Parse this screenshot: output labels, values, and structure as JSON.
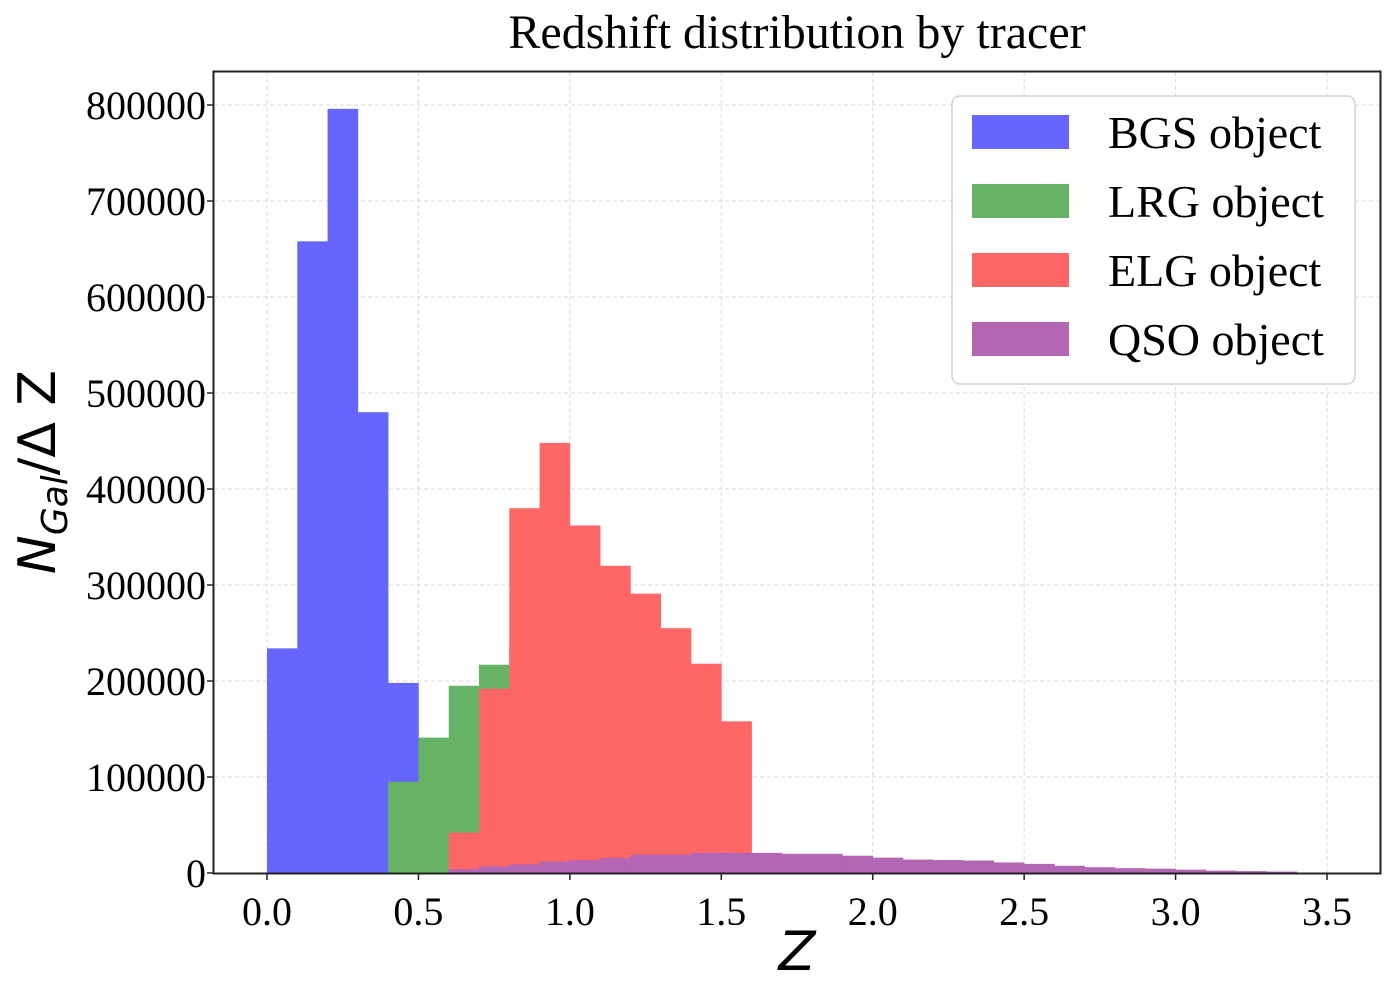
{
  "chart_data": {
    "type": "bar",
    "subtype": "overlaid-histogram",
    "title": "Redshift distribution by tracer",
    "xlabel": "Z",
    "ylabel": {
      "main": "N",
      "subscript": "Gal",
      "rest": "/Δ Z"
    },
    "xlim": [
      -0.175,
      3.675
    ],
    "ylim": [
      0,
      835000
    ],
    "grid": true,
    "legend_position": "top-right",
    "bin_width": 0.1,
    "x_ticks": [
      "0.0",
      "0.5",
      "1.0",
      "1.5",
      "2.0",
      "2.5",
      "3.0",
      "3.5"
    ],
    "x_tick_values": [
      0,
      0.5,
      1.0,
      1.5,
      2.0,
      2.5,
      3.0,
      3.5
    ],
    "y_ticks": [
      "0",
      "100000",
      "200000",
      "300000",
      "400000",
      "500000",
      "600000",
      "700000",
      "800000"
    ],
    "y_tick_values": [
      0,
      100000,
      200000,
      300000,
      400000,
      500000,
      600000,
      700000,
      800000
    ],
    "series": [
      {
        "name": "BGS object",
        "color": "#6666ff",
        "bin_start": 0.0,
        "values": [
          234000,
          658000,
          796000,
          480000,
          198000,
          48000
        ]
      },
      {
        "name": "LRG object",
        "color": "#66b366",
        "bin_start": 0.4,
        "values": [
          95000,
          141000,
          195000,
          217000,
          235000,
          165000,
          72000
        ]
      },
      {
        "name": "ELG object",
        "color": "#ff6666",
        "bin_start": 0.6,
        "values": [
          42000,
          192000,
          380000,
          448000,
          362000,
          320000,
          291000,
          255000,
          218000,
          158000
        ]
      },
      {
        "name": "QSO object",
        "color": "#b366b3",
        "bin_start": 0.6,
        "values": [
          4000,
          7000,
          9000,
          12000,
          13500,
          15500,
          19000,
          19000,
          21000,
          21000,
          21000,
          20000,
          20000,
          18000,
          16000,
          14000,
          13500,
          13000,
          11000,
          9500,
          7500,
          6000,
          5000,
          4500,
          3500,
          2500,
          2000,
          1500
        ]
      }
    ]
  }
}
